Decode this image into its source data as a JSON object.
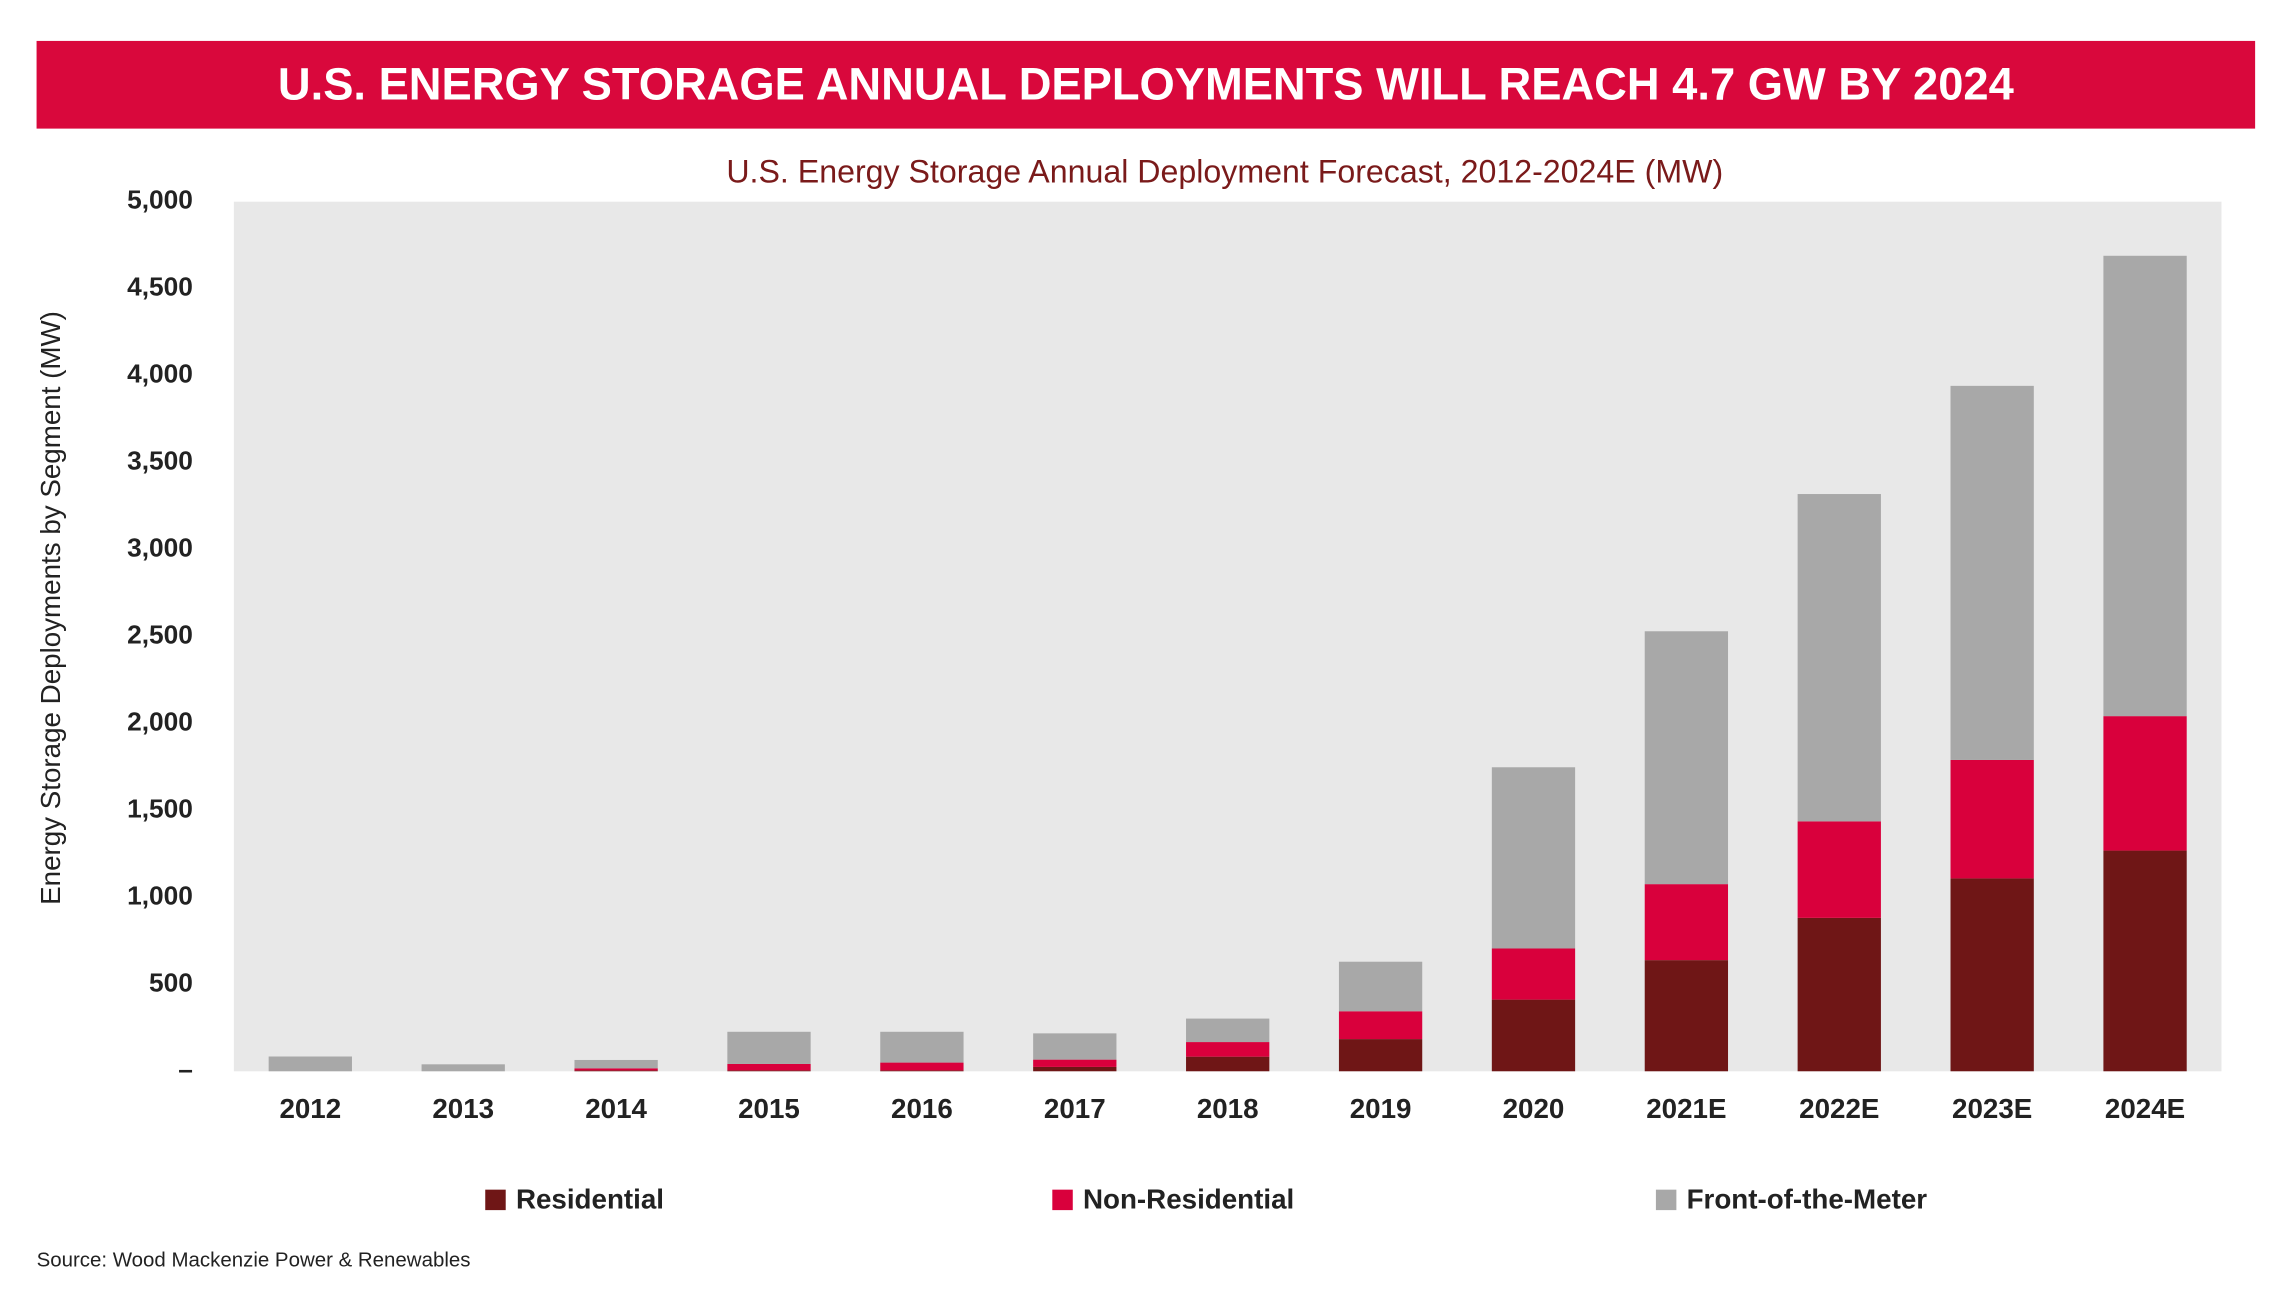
{
  "chart_data": {
    "type": "stacked_bar",
    "banner": "U.S. ENERGY STORAGE ANNUAL DEPLOYMENTS WILL REACH 4.7 GW BY 2024",
    "title": "U.S. Energy Storage Annual Deployment Forecast, 2012-2024E (MW)",
    "y_label": "Energy Storage Deployments by Segment (MW)",
    "source": "Source: Wood Mackenzie Power & Renewables",
    "categories": [
      "2012",
      "2013",
      "2014",
      "2015",
      "2016",
      "2017",
      "2018",
      "2019",
      "2020",
      "2021E",
      "2022E",
      "2023E",
      "2024E"
    ],
    "series": [
      {
        "name": "Residential",
        "color": "#6f1616",
        "values": [
          0,
          0,
          5,
          5,
          5,
          25,
          84,
          185,
          412,
          639,
          882,
          1109,
          1269
        ]
      },
      {
        "name": "Non-Residential",
        "color": "#d9003c",
        "values": [
          0,
          0,
          12,
          37,
          45,
          42,
          84,
          160,
          294,
          437,
          555,
          681,
          773
        ]
      },
      {
        "name": "Front-of-the-Meter",
        "color": "#a8a8a8",
        "values": [
          85,
          40,
          48,
          185,
          177,
          151,
          135,
          285,
          1042,
          1454,
          1882,
          2151,
          2647
        ]
      }
    ],
    "ylim": [
      0,
      5000
    ],
    "yticks": [
      {
        "value": 0,
        "label": "–"
      },
      500,
      {
        "value": 1000,
        "label": "1,000"
      },
      {
        "value": 1500,
        "label": "1,500"
      },
      {
        "value": 2000,
        "label": "2,000"
      },
      {
        "value": 2500,
        "label": "2,500"
      },
      {
        "value": 3000,
        "label": "3,000"
      },
      {
        "value": 3500,
        "label": "3,500"
      },
      {
        "value": 4000,
        "label": "4,000"
      },
      {
        "value": 4500,
        "label": "4,500"
      },
      {
        "value": 5000,
        "label": "5,000"
      }
    ],
    "banner_color": "#d9083c",
    "plot_background": "#e8e8e8",
    "legend": "bottom"
  }
}
